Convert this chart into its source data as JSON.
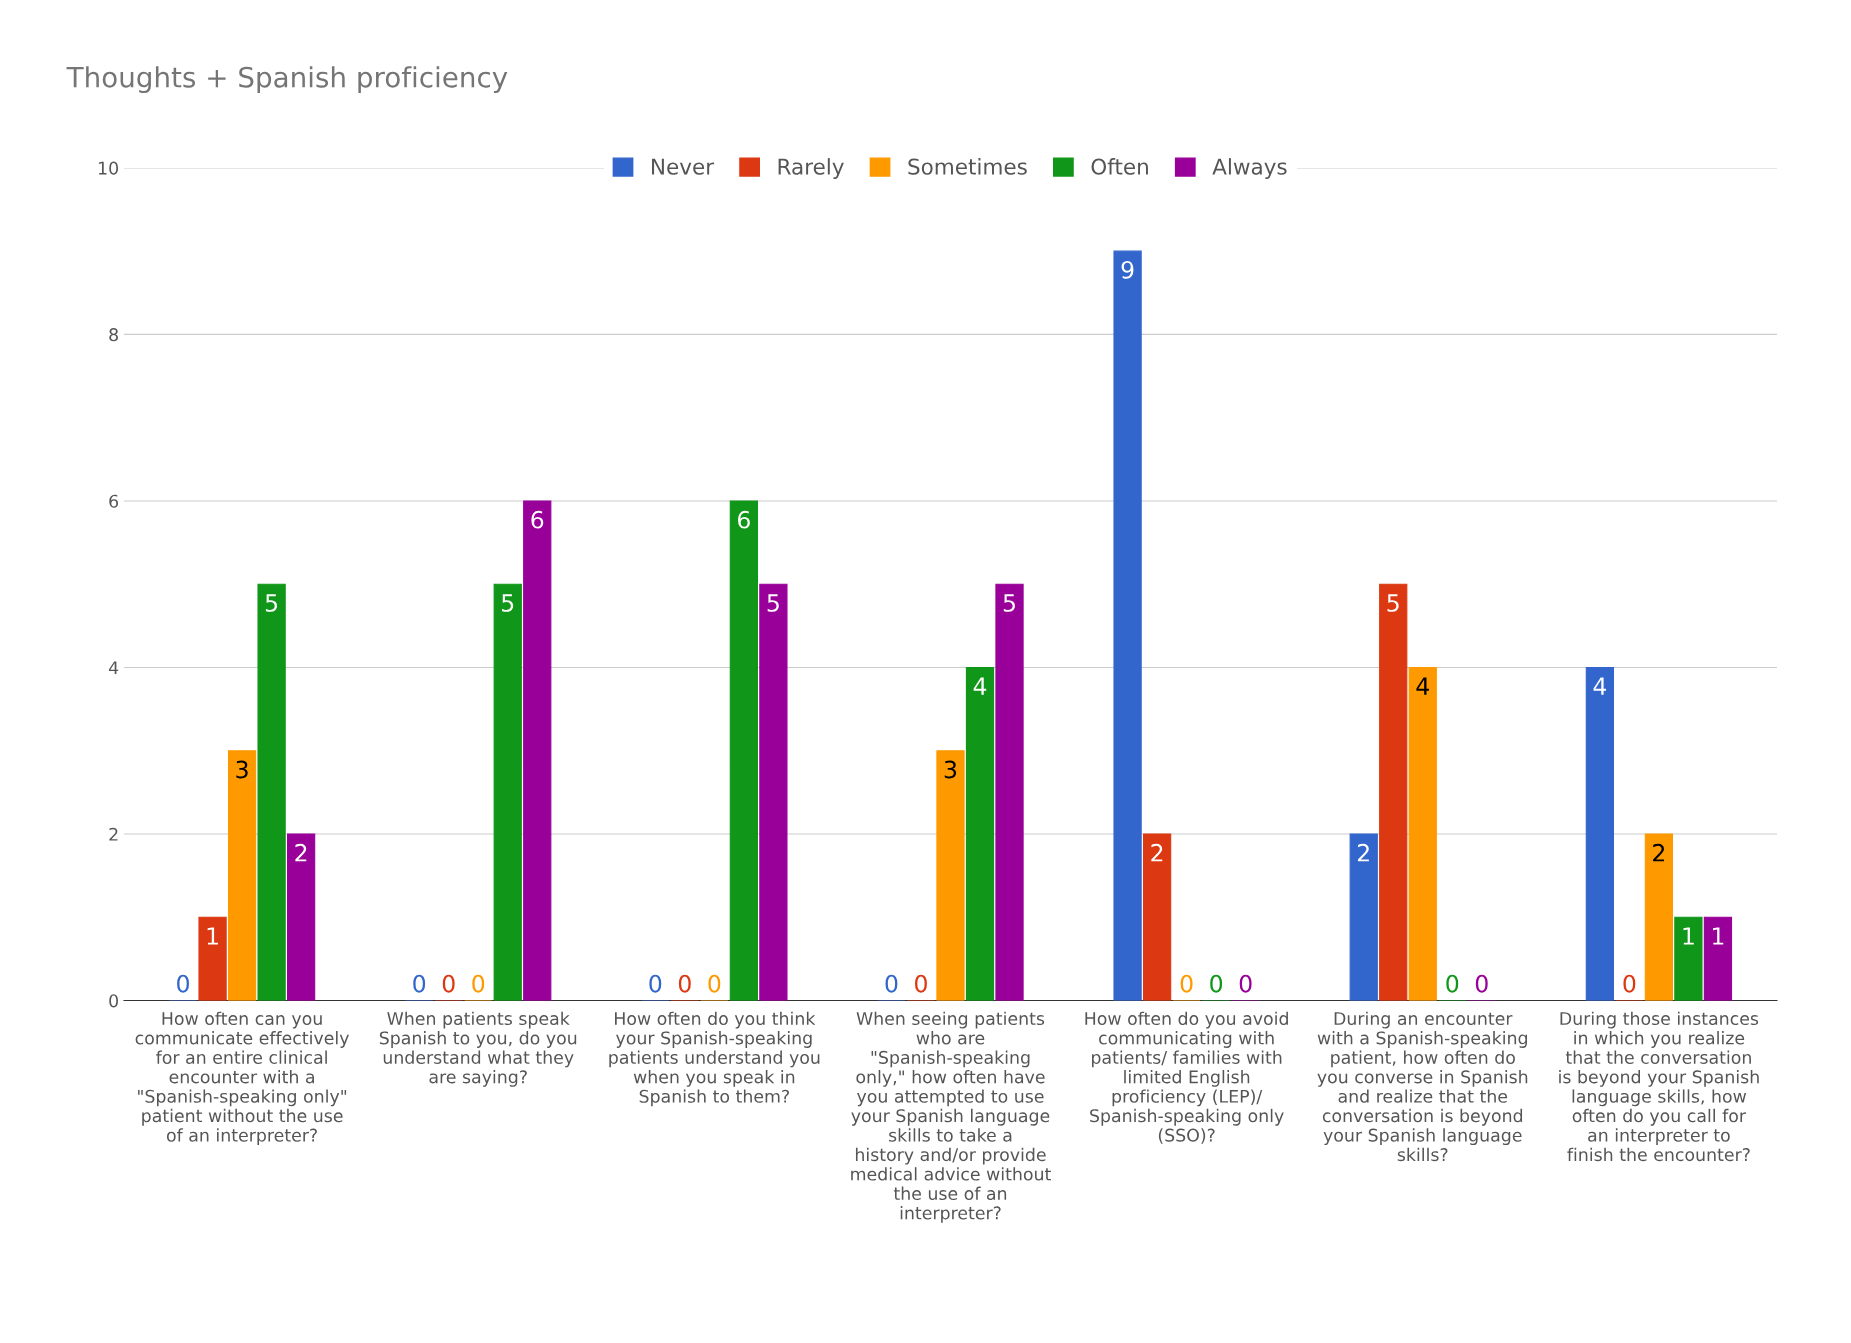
{
  "chart_data": {
    "type": "bar",
    "title": "Thoughts + Spanish proficiency",
    "categories": [
      "How often can you communicate effectively for an entire clinical encounter with a \"Spanish-speaking only\" patient without the use of an interpreter?",
      "When patients speak Spanish to you, do you understand what they are saying?",
      "How often do you think your Spanish-speaking patients understand you when you speak in Spanish to them?",
      "When seeing patients who are \"Spanish-speaking only,\" how often have you attempted to use your Spanish language skills to take a history and/or provide medical advice without the use of an interpreter?",
      "How often do you avoid communicating with patients/ families with limited English proficiency (LEP)/ Spanish-speaking only (SSO)?",
      "During an encounter with a Spanish-speaking patient, how often do you converse in Spanish and realize that the conversation is beyond your Spanish language skills?",
      "During those instances in which you realize that the conversation is beyond your Spanish language skills, how often do you call for an interpreter to finish the encounter?"
    ],
    "series": [
      {
        "name": "Never",
        "color": "#3366cc",
        "values": [
          0,
          0,
          0,
          0,
          9,
          2,
          4
        ]
      },
      {
        "name": "Rarely",
        "color": "#dc3912",
        "values": [
          1,
          0,
          0,
          0,
          2,
          5,
          0
        ]
      },
      {
        "name": "Sometimes",
        "color": "#ff9900",
        "values": [
          3,
          0,
          0,
          3,
          0,
          4,
          2
        ]
      },
      {
        "name": "Often",
        "color": "#109618",
        "values": [
          5,
          5,
          6,
          4,
          0,
          0,
          1
        ]
      },
      {
        "name": "Always",
        "color": "#990099",
        "values": [
          2,
          6,
          5,
          5,
          0,
          0,
          1
        ]
      }
    ],
    "ylim": [
      0,
      10
    ],
    "yticks": [
      0,
      2,
      4,
      6,
      8,
      10
    ],
    "grid": "y",
    "legend": "top",
    "data_labels": true
  }
}
